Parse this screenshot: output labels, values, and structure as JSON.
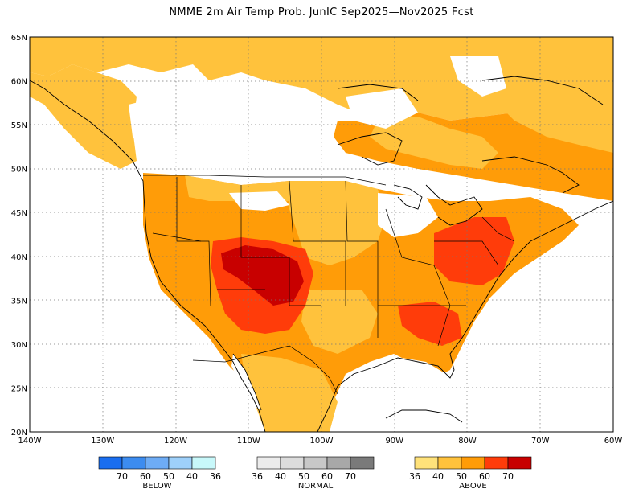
{
  "title": "NMME 2m Air Temp Prob. JunIC  Sep2025—Nov2025 Fcst",
  "map": {
    "lon_range": [
      -140,
      -60
    ],
    "lat_range": [
      20,
      65
    ],
    "lon_ticks": [
      "140W",
      "130W",
      "120W",
      "110W",
      "100W",
      "90W",
      "80W",
      "70W",
      "60W"
    ],
    "lat_ticks": [
      "20N",
      "25N",
      "30N",
      "35N",
      "40N",
      "45N",
      "50N",
      "55N",
      "60N",
      "65N"
    ],
    "grid": true,
    "colors": {
      "above_36": "#ffe27a",
      "above_40": "#ffc23c",
      "above_50": "#ff9c08",
      "above_60": "#ff3c0a",
      "above_70": "#c80000"
    }
  },
  "legend": {
    "below": {
      "title": "BELOW",
      "labels": [
        "70",
        "60",
        "50",
        "40",
        "36"
      ],
      "colors": [
        "#1a6ef0",
        "#3c8cf0",
        "#6eacf5",
        "#9ed0fa",
        "#c8f8fa"
      ]
    },
    "normal": {
      "title": "NORMAL",
      "labels": [
        "36",
        "40",
        "50",
        "60",
        "70"
      ],
      "colors": [
        "#ececec",
        "#dcdcdc",
        "#c8c8c8",
        "#a8a8a8",
        "#7a7a7a"
      ]
    },
    "above": {
      "title": "ABOVE",
      "labels": [
        "36",
        "40",
        "50",
        "60",
        "70"
      ],
      "colors": [
        "#ffe27a",
        "#ffc23c",
        "#ff9c08",
        "#ff3c0a",
        "#c80000"
      ]
    }
  }
}
